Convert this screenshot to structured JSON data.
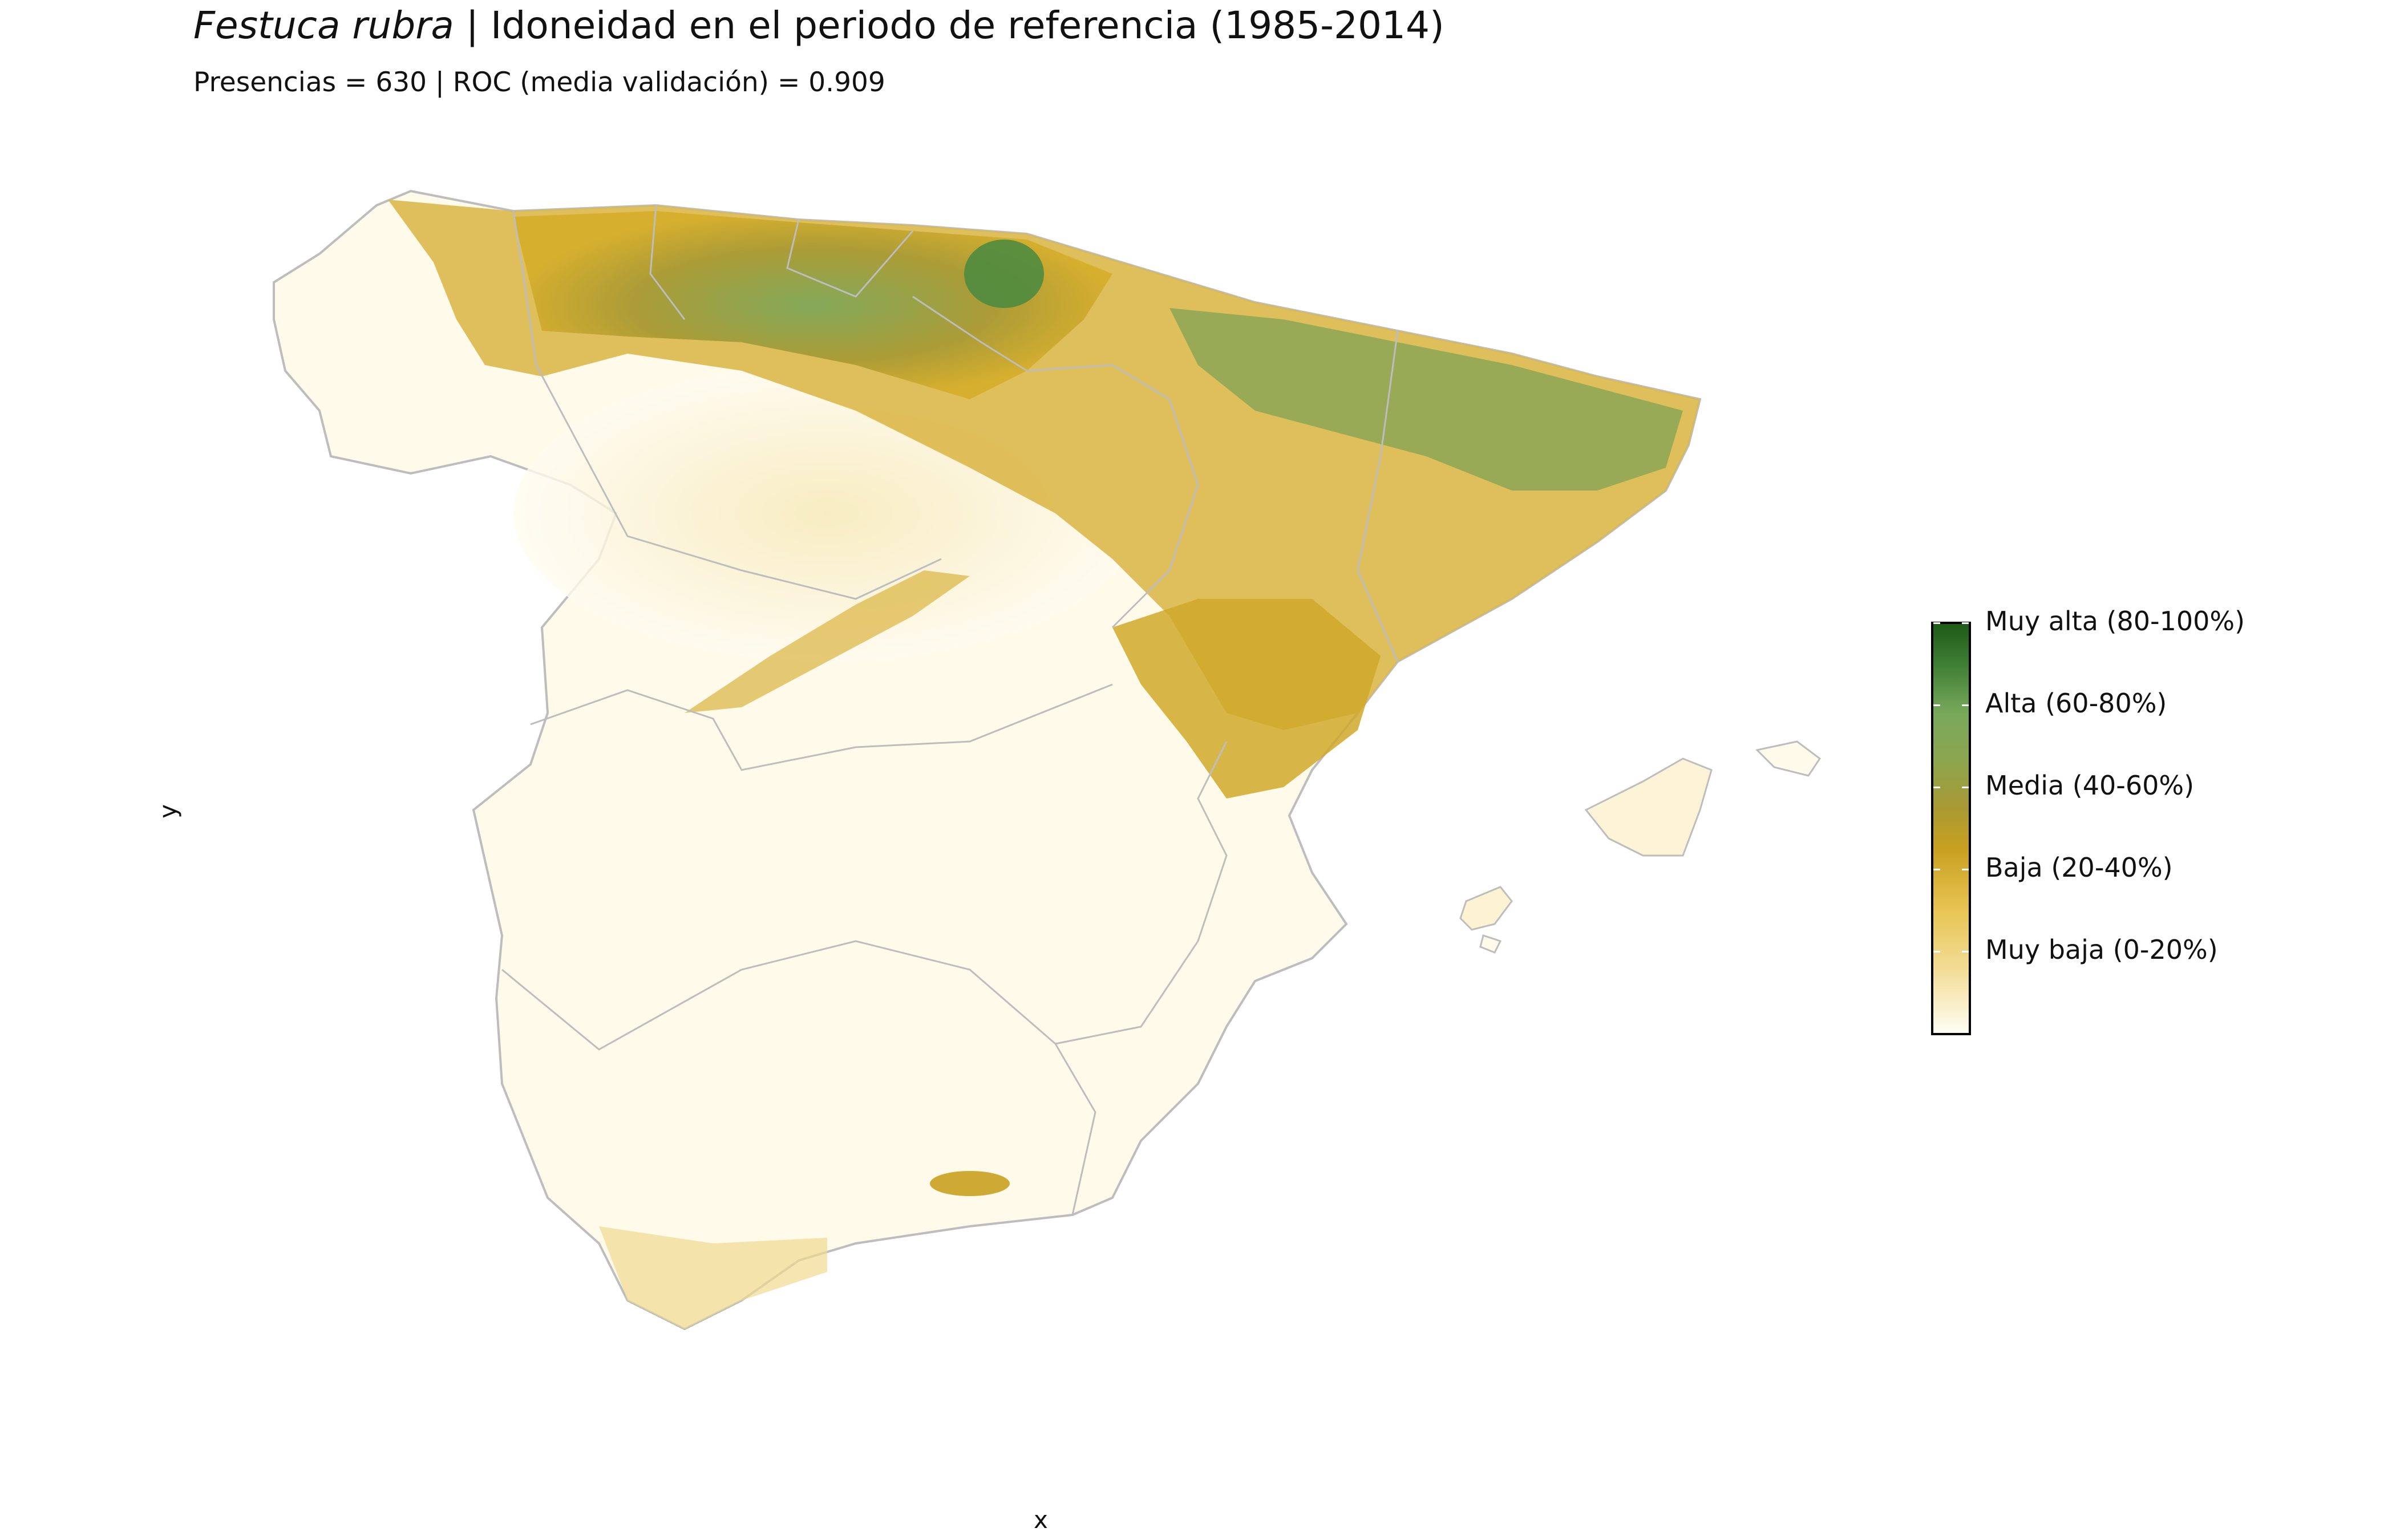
{
  "title": {
    "species": "Festuca rubra",
    "rest": " | Idoneidad en el periodo de referencia (1985-2014)"
  },
  "subtitle": "Presencias = 630  |  ROC (media validación) = 0.909",
  "axes": {
    "x_label": "x",
    "y_label": "y"
  },
  "legend": {
    "labels": [
      "Muy alta (80-100%)",
      "Alta (60-80%)",
      "Media (40-60%)",
      "Baja (20-40%)",
      "Muy baja (0-20%)"
    ]
  },
  "colors": {
    "muy_baja": "#fffdf3",
    "baja": "#e7c453",
    "media": "#c9a020",
    "alta": "#79a95b",
    "muy_alta": "#1f5b18",
    "border": "#bdbdbd"
  }
}
